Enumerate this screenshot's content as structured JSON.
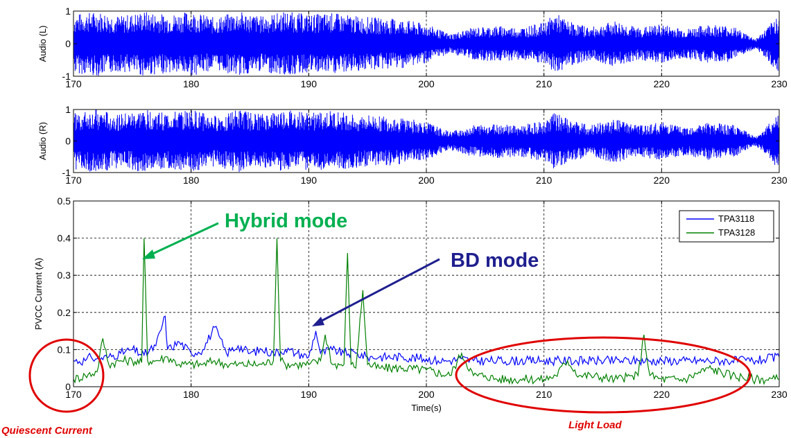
{
  "chart_data": [
    {
      "type": "line",
      "ylabel": "Audio (L)",
      "xlim": [
        170,
        230
      ],
      "ylim": [
        -1,
        1
      ],
      "xticks": [
        170,
        180,
        190,
        200,
        210,
        220,
        230
      ],
      "yticks": [
        -1,
        0,
        1
      ],
      "grid": true,
      "series": [
        {
          "color": "#0000ff",
          "envelope": {
            "x": [
              170,
              172,
              174,
              176,
              178,
              180,
              182,
              184,
              186,
              188,
              190,
              192,
              194,
              196,
              198,
              200,
              202,
              204,
              206,
              208,
              210,
              211,
              212,
              214,
              216,
              218,
              220,
              222,
              224,
              226,
              228,
              229,
              230
            ],
            "amplitude": [
              0.9,
              1.0,
              0.85,
              1.0,
              0.9,
              1.0,
              0.8,
              1.0,
              0.85,
              1.0,
              0.9,
              0.95,
              0.85,
              0.8,
              0.75,
              0.6,
              0.3,
              0.5,
              0.55,
              0.5,
              0.65,
              0.95,
              0.7,
              0.5,
              0.7,
              0.5,
              0.6,
              0.45,
              0.6,
              0.55,
              0.15,
              0.5,
              0.95
            ]
          }
        }
      ]
    },
    {
      "type": "line",
      "ylabel": "Audio (R)",
      "xlim": [
        170,
        230
      ],
      "ylim": [
        -1,
        1
      ],
      "xticks": [
        170,
        180,
        190,
        200,
        210,
        220,
        230
      ],
      "yticks": [
        -1,
        0,
        1
      ],
      "grid": true,
      "series": [
        {
          "color": "#0000ff",
          "envelope": {
            "x": [
              170,
              172,
              174,
              176,
              178,
              180,
              182,
              184,
              186,
              188,
              190,
              192,
              194,
              196,
              198,
              200,
              202,
              204,
              206,
              208,
              210,
              211,
              212,
              214,
              216,
              218,
              220,
              222,
              224,
              226,
              228,
              229,
              230
            ],
            "amplitude": [
              0.9,
              1.0,
              0.85,
              1.0,
              0.9,
              1.0,
              0.8,
              1.0,
              0.85,
              1.0,
              0.9,
              0.95,
              0.85,
              0.8,
              0.75,
              0.6,
              0.3,
              0.5,
              0.55,
              0.5,
              0.65,
              0.95,
              0.7,
              0.5,
              0.7,
              0.5,
              0.6,
              0.45,
              0.6,
              0.55,
              0.15,
              0.5,
              0.95
            ]
          }
        }
      ]
    },
    {
      "type": "line",
      "ylabel": "PVCC Current (A)",
      "xlabel": "Time(s)",
      "xlim": [
        170,
        230
      ],
      "ylim": [
        0,
        0.5
      ],
      "xticks": [
        170,
        180,
        190,
        200,
        210,
        220,
        230
      ],
      "yticks": [
        0,
        0.1,
        0.2,
        0.3,
        0.4,
        0.5
      ],
      "grid": true,
      "legend": "top-right",
      "series": [
        {
          "name": "TPA3118",
          "color": "#0000ff",
          "x": [
            170,
            171,
            171.5,
            172,
            173,
            174,
            175,
            176,
            177,
            177.8,
            178,
            179,
            180,
            181,
            182,
            183,
            184,
            185,
            186,
            187,
            188,
            189,
            190,
            190.6,
            191,
            192,
            193,
            194,
            195,
            196,
            198,
            200,
            201,
            202,
            203,
            204,
            206,
            208,
            210,
            212,
            214,
            216,
            218,
            220,
            222,
            224,
            226,
            228,
            230
          ],
          "y": [
            0.07,
            0.07,
            0.08,
            0.075,
            0.08,
            0.09,
            0.1,
            0.085,
            0.11,
            0.19,
            0.1,
            0.12,
            0.09,
            0.1,
            0.16,
            0.09,
            0.11,
            0.09,
            0.1,
            0.09,
            0.1,
            0.09,
            0.08,
            0.15,
            0.09,
            0.1,
            0.09,
            0.09,
            0.08,
            0.08,
            0.08,
            0.075,
            0.07,
            0.07,
            0.075,
            0.07,
            0.07,
            0.07,
            0.07,
            0.07,
            0.07,
            0.07,
            0.07,
            0.07,
            0.07,
            0.07,
            0.07,
            0.07,
            0.08
          ]
        },
        {
          "name": "TPA3128",
          "color": "#008000",
          "x": [
            170,
            171,
            172,
            172.5,
            173,
            174,
            175,
            175.8,
            176,
            176.3,
            177,
            178,
            179,
            180,
            181,
            182,
            183,
            184,
            185,
            186,
            187,
            187.3,
            187.6,
            188,
            189,
            190,
            191,
            191.4,
            192,
            193,
            193.3,
            193.6,
            194,
            194.6,
            195,
            196,
            198,
            200,
            202,
            203,
            204,
            205,
            206,
            208,
            210,
            211,
            212,
            213,
            214,
            216,
            218,
            218.5,
            219,
            220,
            222,
            224,
            226,
            228,
            230
          ],
          "y": [
            0.02,
            0.03,
            0.04,
            0.13,
            0.06,
            0.07,
            0.07,
            0.065,
            0.4,
            0.07,
            0.07,
            0.08,
            0.06,
            0.06,
            0.06,
            0.07,
            0.06,
            0.06,
            0.06,
            0.06,
            0.07,
            0.4,
            0.07,
            0.06,
            0.06,
            0.06,
            0.07,
            0.14,
            0.06,
            0.06,
            0.36,
            0.06,
            0.05,
            0.26,
            0.06,
            0.05,
            0.05,
            0.045,
            0.03,
            0.09,
            0.03,
            0.03,
            0.02,
            0.02,
            0.02,
            0.03,
            0.07,
            0.03,
            0.03,
            0.02,
            0.03,
            0.14,
            0.03,
            0.02,
            0.02,
            0.05,
            0.03,
            0.02,
            0.02
          ]
        }
      ]
    }
  ],
  "annotations": {
    "hybrid_mode": "Hybrid mode",
    "bd_mode": "BD mode",
    "quiescent_current": "Quiescent Current",
    "light_load": "Light Load"
  },
  "colors": {
    "hybrid": "#00b050",
    "bd": "#1f1f8f",
    "red_note": "#e00000",
    "blue_series": "#0000ff",
    "green_series": "#008000"
  }
}
